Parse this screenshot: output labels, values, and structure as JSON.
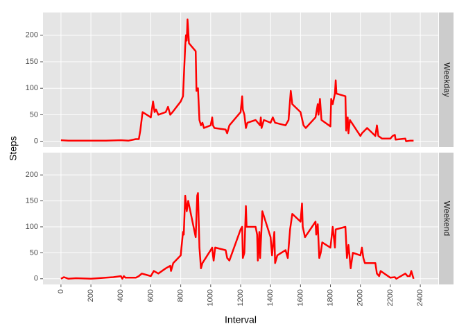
{
  "chart_data": {
    "type": "line",
    "x_label": "Interval",
    "y_label": "Steps",
    "xlim": [
      -120,
      2520
    ],
    "ylim": [
      -11,
      243
    ],
    "xticks": [
      0,
      200,
      400,
      600,
      800,
      1000,
      1200,
      1400,
      1600,
      1800,
      2000,
      2200,
      2400
    ],
    "yticks": [
      0,
      50,
      100,
      150,
      200
    ],
    "grid": true,
    "series": [
      {
        "name": "Weekday",
        "color": "#ff0000",
        "x": [
          0,
          50,
          100,
          150,
          200,
          300,
          400,
          450,
          500,
          520,
          530,
          545,
          600,
          615,
          625,
          635,
          650,
          700,
          715,
          730,
          745,
          800,
          815,
          830,
          835,
          840,
          845,
          850,
          855,
          900,
          905,
          915,
          925,
          935,
          945,
          955,
          1000,
          1010,
          1015,
          1025,
          1100,
          1110,
          1125,
          1200,
          1210,
          1215,
          1225,
          1235,
          1245,
          1300,
          1330,
          1335,
          1340,
          1355,
          1400,
          1415,
          1430,
          1500,
          1520,
          1535,
          1545,
          1600,
          1620,
          1635,
          1700,
          1715,
          1720,
          1730,
          1740,
          1800,
          1805,
          1815,
          1830,
          1835,
          1840,
          1900,
          1905,
          1915,
          1920,
          1930,
          2000,
          2010,
          2045,
          2100,
          2110,
          2120,
          2145,
          2200,
          2215,
          2230,
          2235,
          2300,
          2305,
          2330,
          2355
        ],
        "values": [
          2,
          1,
          1,
          1,
          1,
          1,
          2,
          1,
          4,
          4,
          20,
          55,
          45,
          75,
          55,
          60,
          50,
          55,
          65,
          50,
          55,
          75,
          85,
          180,
          200,
          190,
          230,
          210,
          185,
          170,
          95,
          100,
          40,
          30,
          35,
          25,
          30,
          45,
          30,
          25,
          22,
          15,
          30,
          55,
          85,
          60,
          50,
          25,
          35,
          40,
          30,
          45,
          25,
          40,
          35,
          45,
          35,
          30,
          40,
          95,
          70,
          55,
          30,
          25,
          45,
          70,
          50,
          80,
          40,
          28,
          80,
          70,
          90,
          115,
          90,
          85,
          20,
          45,
          15,
          40,
          10,
          15,
          25,
          10,
          30,
          10,
          5,
          5,
          10,
          12,
          3,
          5,
          0,
          1,
          1
        ]
      },
      {
        "name": "Weekend",
        "color": "#ff0000",
        "x": [
          0,
          20,
          50,
          100,
          200,
          350,
          400,
          410,
          420,
          430,
          500,
          520,
          540,
          600,
          620,
          650,
          700,
          730,
          735,
          750,
          800,
          815,
          820,
          830,
          840,
          850,
          900,
          910,
          915,
          925,
          935,
          945,
          1000,
          1010,
          1015,
          1020,
          1030,
          1100,
          1110,
          1125,
          1200,
          1210,
          1215,
          1225,
          1235,
          1240,
          1300,
          1310,
          1315,
          1325,
          1330,
          1345,
          1400,
          1410,
          1425,
          1430,
          1445,
          1500,
          1515,
          1530,
          1545,
          1600,
          1610,
          1615,
          1630,
          1700,
          1705,
          1715,
          1725,
          1735,
          1745,
          1800,
          1815,
          1830,
          1835,
          1900,
          1910,
          1920,
          1935,
          1950,
          2000,
          2010,
          2020,
          2030,
          2100,
          2110,
          2125,
          2135,
          2200,
          2230,
          2240,
          2300,
          2315,
          2330,
          2340,
          2355
        ],
        "values": [
          0,
          3,
          0,
          1,
          0,
          3,
          5,
          0,
          5,
          2,
          2,
          5,
          10,
          5,
          15,
          10,
          20,
          25,
          15,
          30,
          45,
          90,
          85,
          160,
          130,
          150,
          80,
          160,
          165,
          60,
          20,
          30,
          55,
          60,
          45,
          35,
          60,
          55,
          40,
          35,
          95,
          100,
          40,
          50,
          140,
          100,
          100,
          85,
          35,
          90,
          40,
          130,
          80,
          45,
          90,
          30,
          45,
          55,
          40,
          95,
          125,
          110,
          145,
          100,
          80,
          110,
          85,
          105,
          40,
          50,
          70,
          60,
          100,
          60,
          95,
          100,
          40,
          65,
          20,
          50,
          45,
          60,
          40,
          30,
          30,
          10,
          5,
          15,
          2,
          3,
          0,
          10,
          5,
          5,
          15,
          0
        ]
      }
    ]
  }
}
